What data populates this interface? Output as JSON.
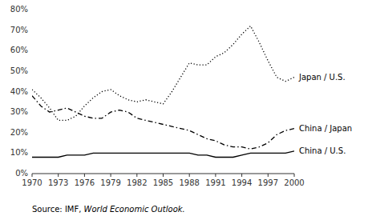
{
  "chart_data": {
    "type": "line",
    "x": [
      1970,
      1971,
      1972,
      1973,
      1974,
      1975,
      1976,
      1977,
      1978,
      1979,
      1980,
      1981,
      1982,
      1983,
      1984,
      1985,
      1986,
      1987,
      1988,
      1989,
      1990,
      1991,
      1992,
      1993,
      1994,
      1995,
      1996,
      1997,
      1998,
      1999,
      2000
    ],
    "series": [
      {
        "name": "Japan / U.S.",
        "color": "#000000",
        "line_style": "dotted",
        "values": [
          0.41,
          0.37,
          0.32,
          0.26,
          0.26,
          0.28,
          0.33,
          0.37,
          0.4,
          0.41,
          0.38,
          0.36,
          0.35,
          0.36,
          0.35,
          0.34,
          0.4,
          0.47,
          0.54,
          0.53,
          0.53,
          0.57,
          0.59,
          0.63,
          0.68,
          0.72,
          0.64,
          0.55,
          0.47,
          0.45,
          0.47
        ]
      },
      {
        "name": "China / Japan",
        "color": "#000000",
        "line_style": "dashdot",
        "values": [
          0.38,
          0.33,
          0.3,
          0.31,
          0.32,
          0.3,
          0.28,
          0.27,
          0.27,
          0.3,
          0.31,
          0.3,
          0.27,
          0.26,
          0.25,
          0.24,
          0.23,
          0.22,
          0.21,
          0.19,
          0.17,
          0.16,
          0.14,
          0.13,
          0.13,
          0.12,
          0.13,
          0.15,
          0.19,
          0.21,
          0.22
        ]
      },
      {
        "name": "China / U.S.",
        "color": "#000000",
        "line_style": "solid",
        "values": [
          0.08,
          0.08,
          0.08,
          0.08,
          0.09,
          0.09,
          0.09,
          0.1,
          0.1,
          0.1,
          0.1,
          0.1,
          0.1,
          0.1,
          0.1,
          0.1,
          0.1,
          0.1,
          0.1,
          0.09,
          0.09,
          0.08,
          0.08,
          0.08,
          0.09,
          0.1,
          0.1,
          0.1,
          0.1,
          0.1,
          0.11
        ]
      }
    ],
    "xlim": [
      1970,
      2000
    ],
    "xticks": [
      1970,
      1973,
      1976,
      1979,
      1982,
      1985,
      1988,
      1991,
      1994,
      1997,
      2000
    ],
    "ylim": [
      0,
      0.8
    ],
    "yticks": [
      {
        "value": 0,
        "label": "0%"
      },
      {
        "value": 0.1,
        "label": "10%"
      },
      {
        "value": 0.2,
        "label": "20%"
      },
      {
        "value": 0.3,
        "label": "30%"
      },
      {
        "value": 0.4,
        "label": "40%"
      },
      {
        "value": 0.5,
        "label": "50%"
      },
      {
        "value": 0.6,
        "label": "60%"
      },
      {
        "value": 0.7,
        "label": "70%"
      },
      {
        "value": 0.8,
        "label": "80%"
      }
    ],
    "grid": false,
    "annotations": [
      "Source: IMF, ",
      "World Economic Outlook."
    ]
  }
}
